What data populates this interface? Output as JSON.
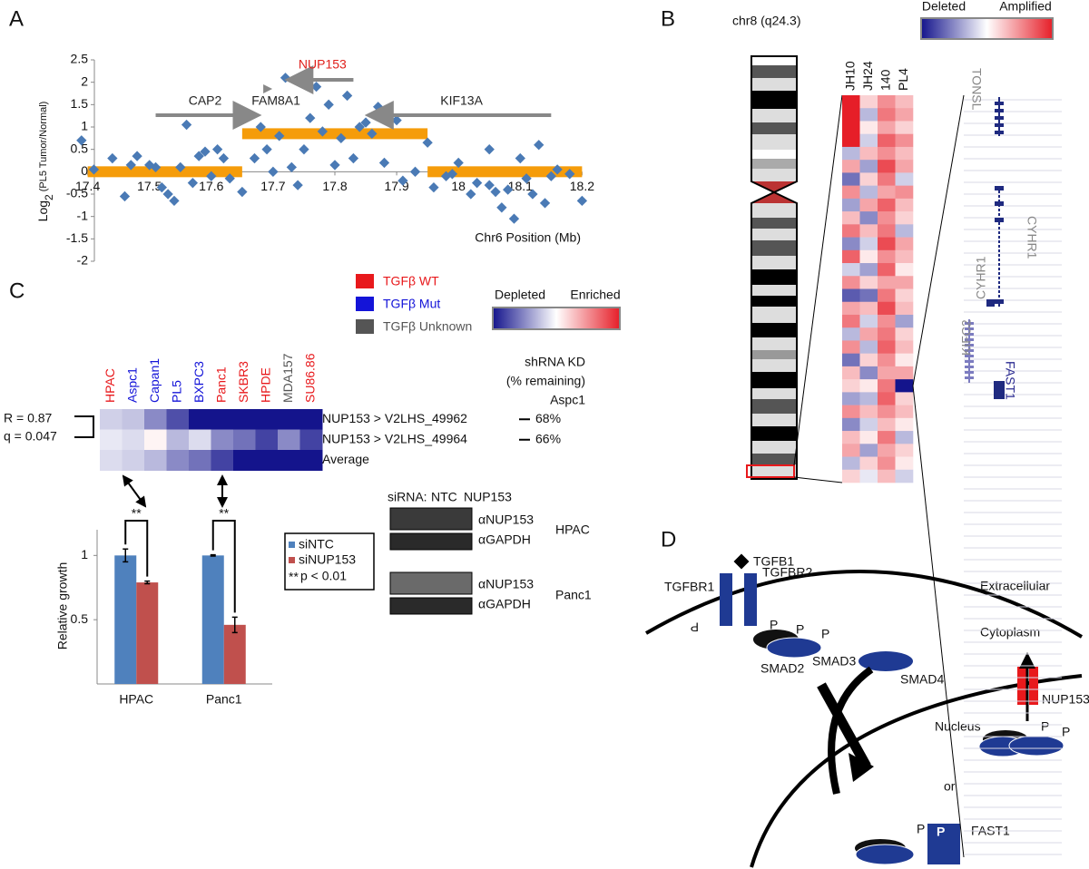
{
  "panel_labels": [
    "A",
    "B",
    "C",
    "D"
  ],
  "chart_data": [
    {
      "type": "scatter",
      "ylabel_parts": [
        "Log",
        "2",
        "(PL5 Tumor/Normal)"
      ],
      "xlabel": "Chr6 Position (Mb)",
      "xlim": [
        17.38,
        18.22
      ],
      "ylim": [
        -2,
        2.5
      ],
      "xticks": [
        17.4,
        17.5,
        17.6,
        17.7,
        17.8,
        17.9,
        {
          "value": 18,
          "label": "18"
        },
        18.1,
        18.2
      ],
      "yticks": [
        -2,
        -1.5,
        -1,
        -0.5,
        0,
        0.5,
        1,
        1.5,
        2,
        2.5
      ],
      "color": "#4a7ab5",
      "x": [
        17.39,
        17.41,
        17.44,
        17.46,
        17.47,
        17.48,
        17.5,
        17.51,
        17.52,
        17.53,
        17.54,
        17.55,
        17.56,
        17.57,
        17.58,
        17.59,
        17.6,
        17.61,
        17.62,
        17.63,
        17.65,
        17.67,
        17.68,
        17.69,
        17.7,
        17.71,
        17.72,
        17.73,
        17.74,
        17.75,
        17.76,
        17.77,
        17.78,
        17.79,
        17.8,
        17.81,
        17.82,
        17.83,
        17.84,
        17.85,
        17.86,
        17.87,
        17.88,
        17.9,
        17.91,
        17.93,
        17.95,
        17.96,
        17.98,
        17.99,
        18.0,
        18.02,
        18.03,
        18.05,
        18.05,
        18.06,
        18.07,
        18.08,
        18.09,
        18.1,
        18.11,
        18.12,
        18.13,
        18.14,
        18.15,
        18.16,
        18.18,
        18.2
      ],
      "values": [
        0.7,
        0.05,
        0.3,
        -0.55,
        0.15,
        0.35,
        0.15,
        0.1,
        -0.35,
        -0.5,
        -0.65,
        0.1,
        1.05,
        -0.25,
        0.35,
        0.45,
        -0.1,
        0.5,
        0.3,
        -0.15,
        -0.45,
        0.3,
        1.0,
        0.5,
        0.0,
        0.8,
        2.1,
        0.1,
        -0.3,
        0.5,
        1.2,
        1.9,
        0.9,
        1.5,
        0.15,
        0.75,
        1.7,
        0.3,
        1.0,
        1.1,
        0.85,
        1.45,
        0.2,
        1.15,
        -0.2,
        0.0,
        0.65,
        -0.35,
        -0.1,
        -0.05,
        0.2,
        -0.5,
        -0.25,
        -0.3,
        0.5,
        -0.45,
        -0.8,
        -0.4,
        -1.05,
        0.3,
        -0.15,
        -0.5,
        0.6,
        -0.7,
        -0.1,
        0.05,
        -0.05,
        -0.65
      ],
      "segments": {
        "color": "#f59c0a",
        "start": [
          17.4,
          17.65,
          17.95
        ],
        "end": [
          17.65,
          17.95,
          18.2
        ],
        "values": [
          0,
          0.85,
          0
        ]
      },
      "genes": [
        {
          "name": "CAP2",
          "color": "#222222",
          "start": 17.51,
          "end": 17.67
        },
        {
          "name": "FAM8A1",
          "color": "#222222",
          "start": 17.69,
          "end": 17.705
        },
        {
          "name": "NUP153",
          "color": "#e0201b",
          "start": 17.83,
          "end": 17.73
        },
        {
          "name": "KIF13A",
          "color": "#222222",
          "start": 18.15,
          "end": 17.86
        }
      ]
    },
    {
      "type": "heatmap",
      "columns": [
        "HPAC",
        "Aspc1",
        "Capan1",
        "PL5",
        "BXPC3",
        "Panc1",
        "SKBR3",
        "HPDE",
        "MDA157",
        "SU86.86"
      ],
      "column_groups": [
        0,
        1,
        1,
        1,
        1,
        0,
        0,
        0,
        2,
        0
      ],
      "groups": [
        {
          "name": "TGFβ WT",
          "color": "#e8191c"
        },
        {
          "name": "TGFβ Mut",
          "color": "#1414d8"
        },
        {
          "name": "TGFβ Unknown",
          "color": "#555555"
        }
      ],
      "rows": [
        {
          "name": "NUP153 > V2LHS_49962",
          "values": [
            -0.2,
            -0.25,
            -0.5,
            -0.75,
            -1,
            -1,
            -1,
            -1,
            -1,
            -1
          ]
        },
        {
          "name": "NUP153 > V2LHS_49964",
          "values": [
            -0.1,
            -0.15,
            0.05,
            -0.3,
            -0.15,
            -0.5,
            -0.6,
            -0.8,
            -0.5,
            -0.8
          ]
        },
        {
          "name": "Average",
          "values": [
            -0.15,
            -0.2,
            -0.3,
            -0.5,
            -0.6,
            -0.8,
            -1,
            -1,
            -1,
            -1
          ]
        }
      ],
      "kd_header": [
        "shRNA KD",
        "(% remaining)",
        "Aspc1"
      ],
      "kd": [
        "68%",
        "66%"
      ],
      "stats": [
        "R = 0.87",
        "q = 0.047"
      ],
      "colorbar": [
        "Depleted",
        "Enriched"
      ]
    },
    {
      "type": "heatmap",
      "title": "chr8 (q24.3)",
      "colorbar": [
        "Deleted",
        "Amplified"
      ],
      "series": [
        {
          "name": "JH10",
          "values": [
            1,
            1,
            1,
            1,
            -0.3,
            0.4,
            -0.6,
            0.5,
            -0.4,
            0.3,
            0.6,
            -0.5,
            0.7,
            -0.2,
            0.5,
            -0.7,
            0.4,
            0.6,
            -0.3,
            0.5,
            -0.6,
            0.3,
            0.2,
            -0.4,
            0.5,
            -0.5,
            0.3,
            0.4,
            -0.3,
            0.2
          ]
        },
        {
          "name": "JH24",
          "values": [
            0.2,
            -0.3,
            0.1,
            -0.2,
            0.3,
            -0.4,
            0.2,
            -0.3,
            0.4,
            -0.5,
            0.3,
            -0.2,
            0.1,
            -0.4,
            0.2,
            -0.6,
            0.3,
            -0.2,
            0.4,
            -0.3,
            0.2,
            -0.5,
            0.1,
            -0.3,
            0.3,
            -0.2,
            0.1,
            -0.4,
            0.2,
            -0.1
          ]
        },
        {
          "name": "140",
          "values": [
            0.5,
            0.6,
            0.4,
            0.7,
            0.5,
            0.8,
            0.6,
            0.4,
            0.7,
            0.5,
            0.6,
            0.8,
            0.5,
            0.7,
            0.4,
            0.6,
            0.8,
            0.5,
            0.6,
            0.7,
            0.5,
            0.4,
            0.6,
            0.7,
            0.5,
            0.3,
            0.6,
            0.4,
            0.5,
            0.3
          ]
        },
        {
          "name": "PL4",
          "values": [
            0.3,
            0.4,
            0.2,
            0.5,
            0.3,
            0.4,
            -0.2,
            0.5,
            0.3,
            0.2,
            -0.3,
            0.4,
            0.3,
            0.1,
            0.4,
            0.2,
            0.3,
            -0.4,
            0.2,
            0.3,
            0.1,
            0.4,
            -1,
            0.2,
            0.3,
            0.1,
            -0.3,
            0.2,
            0.1,
            -0.2
          ]
        }
      ],
      "genes": [
        "TONSL",
        "CYHR1",
        "CYHR1",
        "KIFC2",
        "FAST1"
      ]
    },
    {
      "type": "bar",
      "ylabel": "Relative growth",
      "categories": [
        "HPAC",
        "Panc1"
      ],
      "ylim": [
        0,
        1.2
      ],
      "yticks": [
        0.5,
        1
      ],
      "series": [
        {
          "name": "siNTC",
          "color": "#4f81bd",
          "values": [
            1,
            1
          ],
          "errors": [
            0.05,
            0.005
          ]
        },
        {
          "name": "siNUP153",
          "color": "#c0504d",
          "values": [
            0.79,
            0.46
          ],
          "errors": [
            0.01,
            0.06
          ]
        }
      ],
      "significance": [
        "**",
        "**"
      ],
      "p_note": {
        "marker": "**",
        "text": "p < 0.01"
      }
    }
  ],
  "blot": {
    "header": "siRNA:",
    "lanes": [
      "NTC",
      "NUP153"
    ],
    "antibodies": [
      "αNUP153",
      "αGAPDH"
    ],
    "cells": [
      "HPAC",
      "Panc1"
    ]
  },
  "diagram": {
    "tgfb1": "TGFB1",
    "tgfbr1": "TGFBR1",
    "tgfbr2": "TGFBR2",
    "extracellular": "Extracellular",
    "cytoplasm": "Cytoplasm",
    "smad2": "SMAD2",
    "smad3": "SMAD3",
    "smad4": "SMAD4",
    "nup153": "NUP153",
    "nucleus": "Nucleus",
    "or": "or",
    "fast1": "FAST1",
    "phospho": "P"
  }
}
